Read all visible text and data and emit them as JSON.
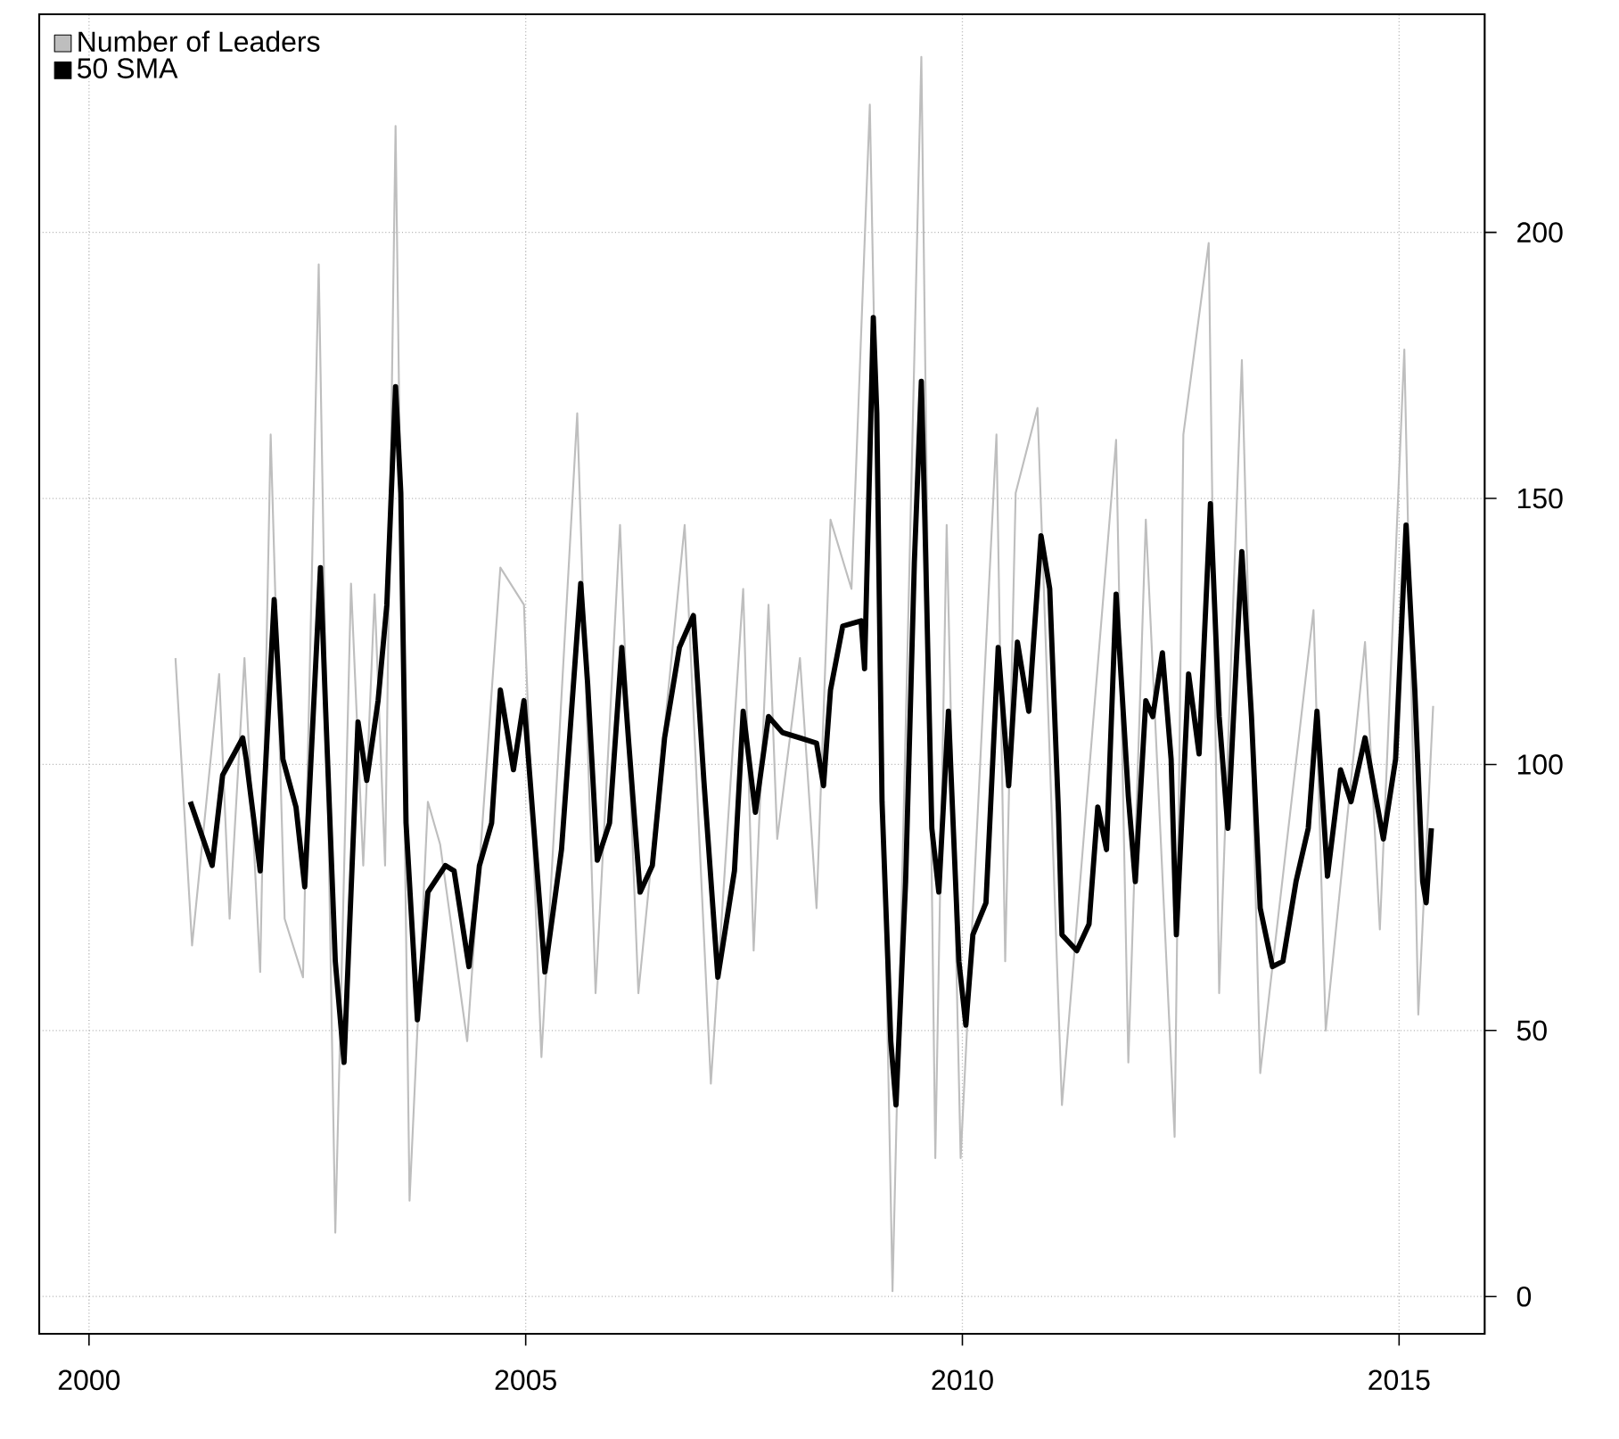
{
  "chart_data": {
    "type": "line",
    "xlim": [
      1999.43,
      2015.98
    ],
    "ylim": [
      -7,
      241
    ],
    "xticks": [
      2000,
      2005,
      2010,
      2015
    ],
    "yticks": [
      0,
      50,
      100,
      150,
      200
    ],
    "grid": true,
    "legend": "top left",
    "marker": "none",
    "series": [
      {
        "name": "Number of Leaders",
        "color": "#bebebe",
        "x": [
          2000.99,
          2001.18,
          2001.49,
          2001.61,
          2001.78,
          2001.96,
          2002.08,
          2002.24,
          2002.45,
          2002.63,
          2002.82,
          2003.0,
          2003.14,
          2003.27,
          2003.39,
          2003.51,
          2003.67,
          2003.88,
          2004.02,
          2004.33,
          2004.71,
          2004.98,
          2005.18,
          2005.59,
          2005.8,
          2006.08,
          2006.29,
          2006.82,
          2007.12,
          2007.49,
          2007.61,
          2007.78,
          2007.88,
          2008.14,
          2008.33,
          2008.49,
          2008.73,
          2008.94,
          2009.2,
          2009.53,
          2009.69,
          2009.82,
          2009.98,
          2010.39,
          2010.49,
          2010.61,
          2010.86,
          2011.14,
          2011.76,
          2011.9,
          2012.1,
          2012.43,
          2012.53,
          2012.82,
          2012.94,
          2013.2,
          2013.41,
          2014.02,
          2014.16,
          2014.61,
          2014.78,
          2015.06,
          2015.22,
          2015.39
        ],
        "values": [
          120,
          66,
          117,
          71,
          120,
          61,
          162,
          71,
          60,
          194,
          12,
          134,
          81,
          132,
          81,
          220,
          18,
          93,
          85,
          48,
          137,
          130,
          45,
          166,
          57,
          145,
          57,
          145,
          40,
          133,
          65,
          130,
          86,
          120,
          73,
          146,
          133,
          224,
          1,
          233,
          26,
          145,
          26,
          162,
          63,
          151,
          167,
          36,
          161,
          44,
          146,
          30,
          162,
          198,
          57,
          176,
          42,
          129,
          50,
          123,
          69,
          178,
          53,
          111
        ]
      },
      {
        "name": "50 SMA",
        "color": "#000000",
        "x": [
          2001.16,
          2001.41,
          2001.53,
          2001.76,
          2001.8,
          2001.96,
          2002.12,
          2002.22,
          2002.37,
          2002.47,
          2002.65,
          2002.71,
          2002.82,
          2002.92,
          2002.98,
          2003.08,
          2003.18,
          2003.31,
          2003.41,
          2003.51,
          2003.57,
          2003.63,
          2003.76,
          2003.88,
          2004.08,
          2004.18,
          2004.35,
          2004.47,
          2004.61,
          2004.71,
          2004.86,
          2004.98,
          2005.22,
          2005.41,
          2005.63,
          2005.71,
          2005.82,
          2005.96,
          2006.1,
          2006.18,
          2006.31,
          2006.45,
          2006.59,
          2006.76,
          2006.92,
          2007.04,
          2007.2,
          2007.39,
          2007.49,
          2007.63,
          2007.78,
          2007.94,
          2008.14,
          2008.33,
          2008.41,
          2008.49,
          2008.63,
          2008.84,
          2008.88,
          2008.98,
          2009.02,
          2009.08,
          2009.18,
          2009.24,
          2009.35,
          2009.45,
          2009.53,
          2009.57,
          2009.65,
          2009.73,
          2009.84,
          2009.96,
          2010.04,
          2010.12,
          2010.27,
          2010.41,
          2010.53,
          2010.63,
          2010.76,
          2010.9,
          2011.0,
          2011.1,
          2011.14,
          2011.31,
          2011.45,
          2011.55,
          2011.65,
          2011.76,
          2011.9,
          2011.98,
          2012.1,
          2012.18,
          2012.29,
          2012.39,
          2012.45,
          2012.59,
          2012.71,
          2012.84,
          2012.94,
          2013.04,
          2013.2,
          2013.31,
          2013.41,
          2013.55,
          2013.67,
          2013.82,
          2013.96,
          2014.06,
          2014.18,
          2014.33,
          2014.45,
          2014.61,
          2014.82,
          2014.96,
          2015.08,
          2015.18,
          2015.27,
          2015.31,
          2015.37
        ],
        "values": [
          93,
          81,
          98,
          105,
          101,
          80,
          131,
          101,
          92,
          77,
          137,
          110,
          63,
          44,
          68,
          108,
          97,
          112,
          130,
          171,
          151,
          89,
          52,
          76,
          81,
          80,
          62,
          81,
          89,
          114,
          99,
          112,
          61,
          84,
          134,
          115,
          82,
          89,
          122,
          104,
          76,
          81,
          105,
          122,
          128,
          97,
          60,
          80,
          110,
          91,
          109,
          106,
          105,
          104,
          96,
          114,
          126,
          127,
          118,
          184,
          166,
          93,
          48,
          36,
          78,
          138,
          172,
          146,
          88,
          76,
          110,
          63,
          51,
          68,
          74,
          122,
          96,
          123,
          110,
          143,
          133,
          91,
          68,
          65,
          70,
          92,
          84,
          132,
          94,
          78,
          112,
          109,
          121,
          101,
          68,
          117,
          102,
          149,
          109,
          88,
          140,
          109,
          73,
          62,
          63,
          78,
          88,
          110,
          79,
          99,
          93,
          105,
          86,
          101,
          145,
          114,
          78,
          74,
          88
        ]
      }
    ]
  }
}
